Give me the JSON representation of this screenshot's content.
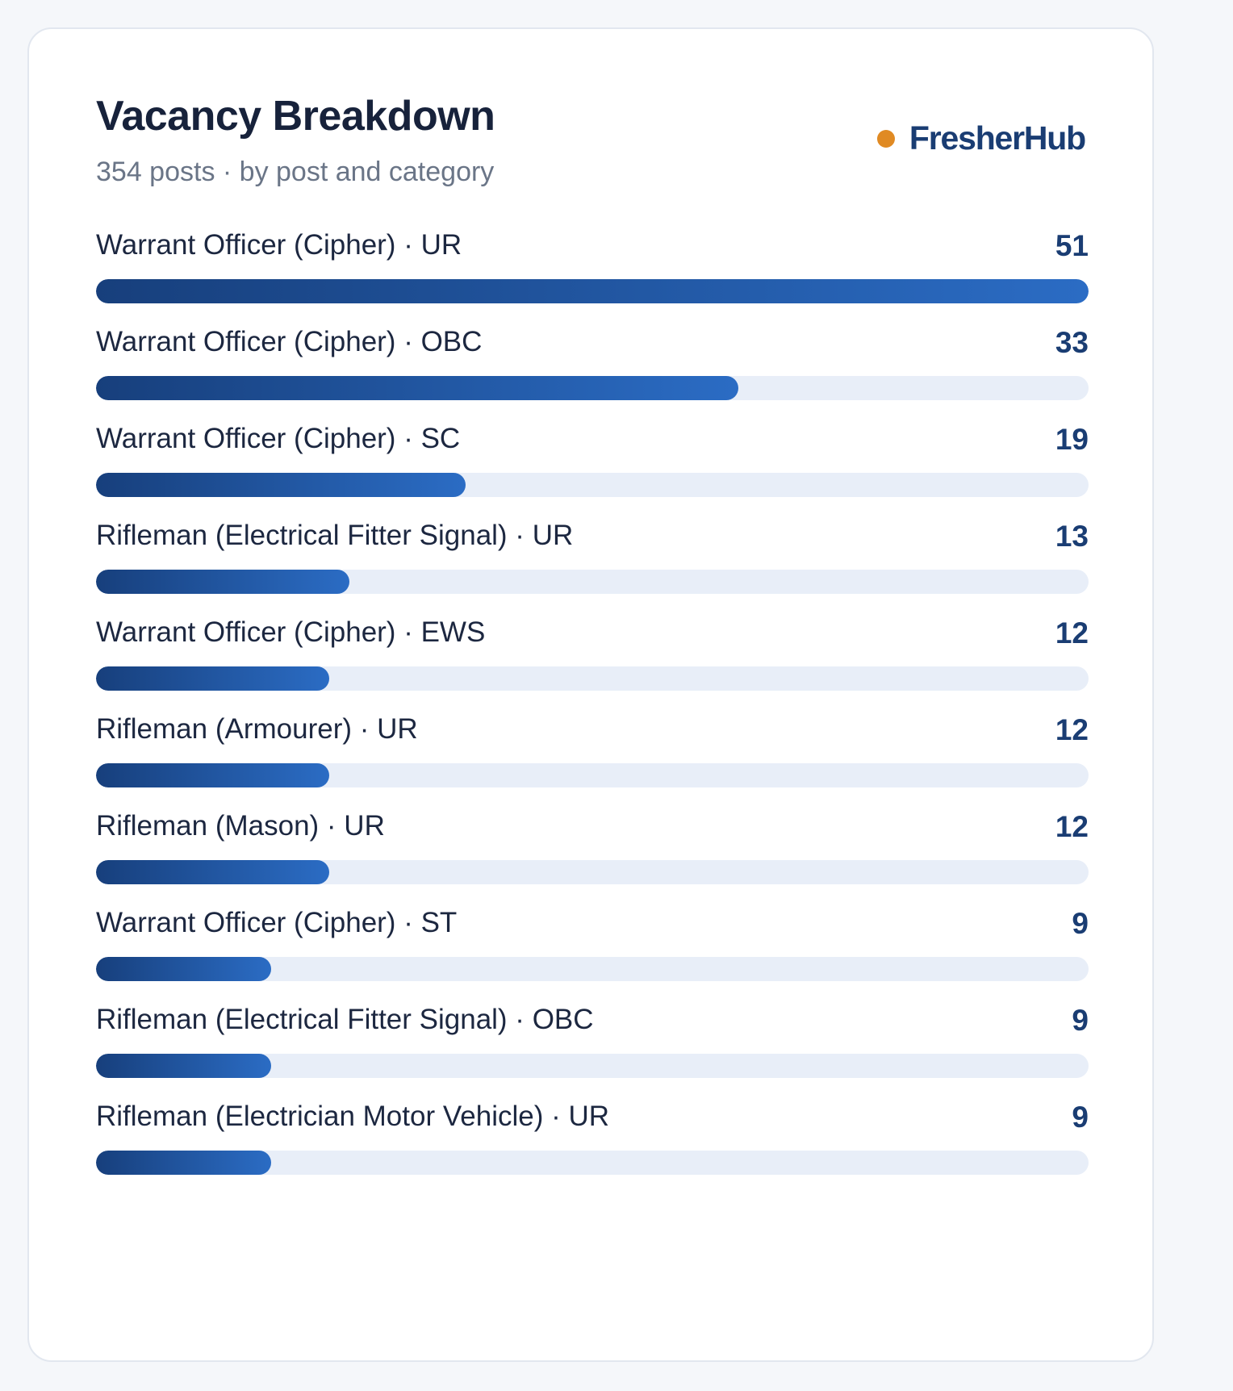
{
  "card": {
    "title": "Vacancy Breakdown",
    "subtitle": "354 posts · by post and category"
  },
  "brand": {
    "name": "FresherHub",
    "dot_color": "#e08a23",
    "name_color": "#1a3d73"
  },
  "colors": {
    "bar_start": "#173f7c",
    "bar_end": "#2b6cc4",
    "track": "#e8eef8"
  },
  "chart_data": {
    "type": "bar",
    "orientation": "horizontal",
    "title": "Vacancy Breakdown",
    "subtitle": "354 posts · by post and category",
    "xlim": [
      0,
      51
    ],
    "categories": [
      "Warrant Officer (Cipher) · UR",
      "Warrant Officer (Cipher) · OBC",
      "Warrant Officer (Cipher) · SC",
      "Rifleman (Electrical Fitter Signal) · UR",
      "Warrant Officer (Cipher) · EWS",
      "Rifleman (Armourer) · UR",
      "Rifleman (Mason) · UR",
      "Warrant Officer (Cipher) · ST",
      "Rifleman (Electrical Fitter Signal) · OBC",
      "Rifleman (Electrician Motor Vehicle) · UR"
    ],
    "values": [
      51,
      33,
      19,
      13,
      12,
      12,
      12,
      9,
      9,
      9
    ]
  }
}
